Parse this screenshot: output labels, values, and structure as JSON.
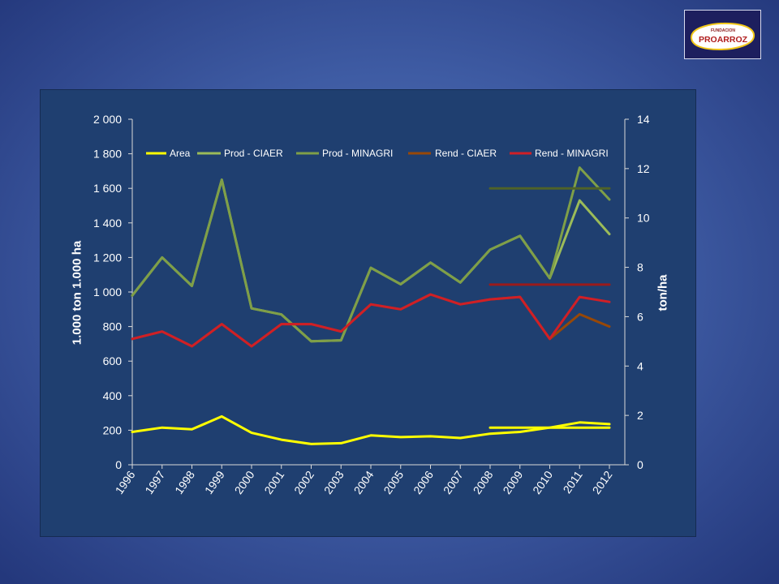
{
  "logo": {
    "line1": "FUNDACION",
    "line2": "PROARROZ"
  },
  "chart_data": {
    "type": "line",
    "categories": [
      "1996",
      "1997",
      "1998",
      "1999",
      "2000",
      "2001",
      "2002",
      "2003",
      "2004",
      "2005",
      "2006",
      "2007",
      "2008",
      "2009",
      "2010",
      "2011",
      "2012"
    ],
    "y_left": {
      "label": "1.000 ton 1.000 ha",
      "range": [
        0,
        2000
      ],
      "ticks": [
        0,
        200,
        400,
        600,
        800,
        1000,
        1200,
        1400,
        1600,
        1800,
        2000
      ],
      "tick_labels": [
        "0",
        "200",
        "400",
        "600",
        "800",
        "1 000",
        "1 200",
        "1 400",
        "1 600",
        "1 800",
        "2 000"
      ]
    },
    "y_right": {
      "label": "ton/ha",
      "range": [
        0,
        14
      ],
      "ticks": [
        0,
        2,
        4,
        6,
        8,
        10,
        12,
        14
      ],
      "tick_labels": [
        "0",
        "2",
        "4",
        "6",
        "8",
        "10",
        "12",
        "14"
      ]
    },
    "legend": "top",
    "grid": false,
    "series": [
      {
        "name": "Area",
        "axis": "left",
        "color": "#ffff00",
        "values": [
          190,
          215,
          205,
          280,
          185,
          145,
          120,
          125,
          170,
          160,
          165,
          155,
          180,
          190,
          215,
          245,
          235
        ]
      },
      {
        "name": "Prod - CIAER",
        "axis": "left",
        "color": "#9bbb59",
        "values": [
          980,
          1200,
          1035,
          1650,
          905,
          870,
          715,
          720,
          1140,
          1045,
          1170,
          1055,
          1245,
          1325,
          1080,
          1530,
          1335
        ]
      },
      {
        "name": "Prod - MINAGRI",
        "axis": "left",
        "color": "#7f9f48",
        "values": [
          980,
          1200,
          1035,
          1650,
          905,
          870,
          715,
          720,
          1140,
          1045,
          1170,
          1055,
          1245,
          1325,
          1080,
          1720,
          1535
        ]
      },
      {
        "name": "Rend - CIAER",
        "axis": "right",
        "color": "#984807",
        "values": [
          5.1,
          5.4,
          4.8,
          5.7,
          4.8,
          5.7,
          5.7,
          5.4,
          6.5,
          6.3,
          6.9,
          6.5,
          6.7,
          6.8,
          5.1,
          6.1,
          5.6
        ]
      },
      {
        "name": "Rend - MINAGRI",
        "axis": "right",
        "color": "#d01f26",
        "values": [
          5.1,
          5.4,
          4.8,
          5.7,
          4.8,
          5.7,
          5.7,
          5.4,
          6.5,
          6.3,
          6.9,
          6.5,
          6.7,
          6.8,
          5.1,
          6.8,
          6.6
        ]
      },
      {
        "axis": "left",
        "color": "#ffff00",
        "values": [
          null,
          null,
          null,
          null,
          null,
          null,
          null,
          null,
          null,
          null,
          null,
          null,
          215,
          215,
          215,
          215,
          215
        ]
      },
      {
        "axis": "left",
        "color": "#4f6228",
        "values": [
          null,
          null,
          null,
          null,
          null,
          null,
          null,
          null,
          null,
          null,
          null,
          null,
          1600,
          1600,
          1600,
          1600,
          1600
        ]
      },
      {
        "axis": "right",
        "color": "#9b1b1b",
        "values": [
          null,
          null,
          null,
          null,
          null,
          null,
          null,
          null,
          null,
          null,
          null,
          null,
          7.3,
          7.3,
          7.3,
          7.3,
          7.3
        ]
      }
    ]
  }
}
